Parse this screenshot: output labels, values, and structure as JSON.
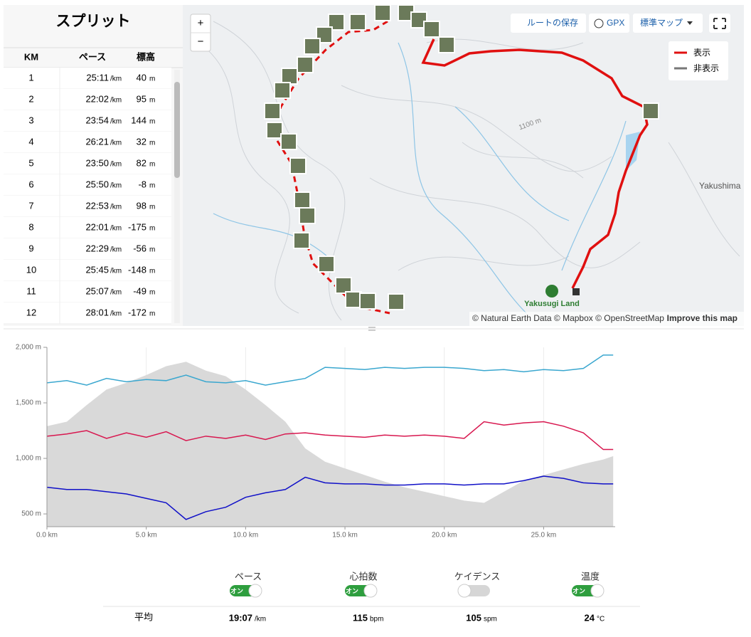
{
  "splits": {
    "title": "スプリット",
    "headers": [
      "KM",
      "ペース",
      "標高"
    ],
    "pace_unit": "/km",
    "elev_unit": "m",
    "rows": [
      [
        1,
        "25:11",
        40
      ],
      [
        2,
        "22:02",
        95
      ],
      [
        3,
        "23:54",
        144
      ],
      [
        4,
        "26:21",
        32
      ],
      [
        5,
        "23:50",
        82
      ],
      [
        6,
        "25:50",
        -8
      ],
      [
        7,
        "22:53",
        98
      ],
      [
        8,
        "22:01",
        -175
      ],
      [
        9,
        "22:29",
        -56
      ],
      [
        10,
        "25:45",
        -148
      ],
      [
        11,
        "25:07",
        -49
      ],
      [
        12,
        "28:01",
        -172
      ]
    ]
  },
  "map": {
    "zoom_in": "+",
    "zoom_out": "−",
    "save_route": "ルートの保存",
    "gpx": "GPX",
    "map_style": "標準マップ",
    "legend": [
      "表示",
      "非表示"
    ],
    "contour_label": "1100 m",
    "place": "Yakushima",
    "poi": "Yakusugi Land",
    "attribution": "© Natural Earth Data © Mapbox © OpenStreetMap",
    "improve": "Improve this map"
  },
  "chart_data": {
    "type": "line",
    "x": [
      0,
      1,
      2,
      3,
      4,
      5,
      6,
      7,
      8,
      9,
      10,
      11,
      12,
      13,
      14,
      15,
      16,
      17,
      18,
      19,
      20,
      21,
      22,
      23,
      24,
      25,
      26,
      27,
      28,
      28.5
    ],
    "xlim": [
      0,
      28.6
    ],
    "ylim": [
      385,
      2000
    ],
    "xticks": [
      {
        "value": 0,
        "label": "0.0 km"
      },
      {
        "value": 5,
        "label": "5.0 km"
      },
      {
        "value": 10,
        "label": "10.0 km"
      },
      {
        "value": 15,
        "label": "15.0 km"
      },
      {
        "value": 20,
        "label": "20.0 km"
      },
      {
        "value": 25,
        "label": "25.0 km"
      }
    ],
    "yticks": [
      {
        "value": 500,
        "label": "500 m"
      },
      {
        "value": 1000,
        "label": "1,000 m"
      },
      {
        "value": 1500,
        "label": "1,500 m"
      },
      {
        "value": 2000,
        "label": "2,000 m"
      }
    ],
    "elevation": {
      "color": "#d9d9d9",
      "values": [
        1290,
        1330,
        1480,
        1620,
        1680,
        1750,
        1830,
        1870,
        1790,
        1740,
        1620,
        1480,
        1330,
        1090,
        970,
        910,
        850,
        790,
        740,
        700,
        660,
        620,
        600,
        700,
        800,
        850,
        900,
        950,
        990,
        1020
      ]
    },
    "toggle_on_label": "オン",
    "average_label": "平均",
    "series": [
      {
        "name": "ペース",
        "color": "#3aa7cf",
        "visible": true,
        "average": "19:07",
        "average_unit": "/km",
        "values": [
          1680,
          1700,
          1660,
          1720,
          1690,
          1710,
          1700,
          1750,
          1690,
          1680,
          1700,
          1660,
          1690,
          1720,
          1820,
          1810,
          1800,
          1820,
          1810,
          1820,
          1820,
          1810,
          1790,
          1800,
          1780,
          1800,
          1790,
          1810,
          1930,
          1930
        ]
      },
      {
        "name": "心拍数",
        "color": "#d8174f",
        "visible": true,
        "average": 115,
        "average_unit": "bpm",
        "values": [
          1200,
          1220,
          1250,
          1180,
          1230,
          1190,
          1240,
          1160,
          1200,
          1180,
          1210,
          1170,
          1220,
          1230,
          1210,
          1200,
          1190,
          1210,
          1200,
          1210,
          1200,
          1180,
          1330,
          1300,
          1320,
          1330,
          1290,
          1230,
          1080,
          1080
        ]
      },
      {
        "name": "ケイデンス",
        "color": "#888888",
        "visible": false,
        "average": 105,
        "average_unit": "spm"
      },
      {
        "name": "温度",
        "color": "#1010c8",
        "visible": true,
        "average": 24,
        "average_unit": "°C",
        "values": [
          740,
          720,
          720,
          700,
          680,
          640,
          600,
          450,
          520,
          560,
          650,
          690,
          720,
          830,
          780,
          770,
          770,
          760,
          760,
          770,
          770,
          760,
          770,
          770,
          800,
          840,
          820,
          780,
          770,
          770
        ]
      }
    ]
  }
}
